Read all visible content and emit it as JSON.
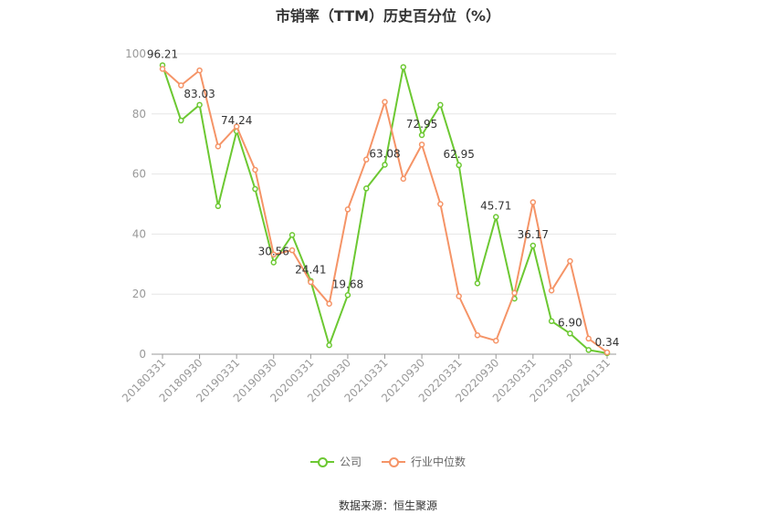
{
  "title": "市销率（TTM）历史百分位（%）",
  "source": "数据来源：恒生聚源",
  "colors": {
    "company": "#6cc832",
    "industry": "#f59467",
    "grid": "#e6e6e6",
    "axis": "#999999",
    "tick_text": "#999999",
    "label_text": "#333333"
  },
  "chart_data": {
    "type": "line",
    "ylim": [
      0,
      100
    ],
    "yticks": [
      0,
      20,
      40,
      60,
      80,
      100
    ],
    "xticks": [
      "20180331",
      "20180930",
      "20190331",
      "20190930",
      "20200331",
      "20200930",
      "20210331",
      "20210930",
      "20220331",
      "20220930",
      "20230331",
      "20230930",
      "20240131"
    ],
    "x": [
      "20180331",
      "20180630",
      "20180930",
      "20181231",
      "20190331",
      "20190630",
      "20190930",
      "20191231",
      "20200331",
      "20200630",
      "20200930",
      "20201231",
      "20210331",
      "20210630",
      "20210930",
      "20211231",
      "20220331",
      "20220630",
      "20220930",
      "20221231",
      "20230331",
      "20230630",
      "20230930",
      "20231231",
      "20240131"
    ],
    "series": [
      {
        "name": "公司",
        "values": [
          96.21,
          77.8,
          83.03,
          49.3,
          74.24,
          55.0,
          30.56,
          39.7,
          24.41,
          3.0,
          19.68,
          55.2,
          63.08,
          95.6,
          72.95,
          83.0,
          62.95,
          23.6,
          45.71,
          18.5,
          36.17,
          11.0,
          6.9,
          1.4,
          0.34
        ],
        "labels": [
          "96.21",
          "",
          "83.03",
          "",
          "74.24",
          "",
          "30.56",
          "",
          "24.41",
          "",
          "19.68",
          "",
          "63.08",
          "",
          "72.95",
          "",
          "62.95",
          "",
          "45.71",
          "",
          "36.17",
          "",
          "6.90",
          "",
          "0.34"
        ]
      },
      {
        "name": "行业中位数",
        "values": [
          95.0,
          89.5,
          94.5,
          69.2,
          75.8,
          61.4,
          33.2,
          34.6,
          24.0,
          16.8,
          48.2,
          64.8,
          84.0,
          58.4,
          69.8,
          50.0,
          19.3,
          6.3,
          4.5,
          20.4,
          50.6,
          21.2,
          31.0,
          5.2,
          0.6
        ]
      }
    ]
  }
}
